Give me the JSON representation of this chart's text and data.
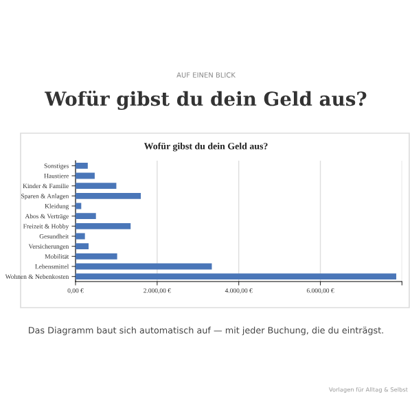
{
  "chart_data": {
    "type": "bar",
    "orientation": "horizontal",
    "title": "Wofür gibst du dein Geld aus?",
    "subtitle": "AUF EINEN BLICK",
    "annotations": [
      "Wofür gibst du dein Geld aus?",
      "Das Diagramm baut sich automatisch auf — mit jeder Buchung, die du einträgst.",
      "Vorlagen für Alltag & Selbst"
    ],
    "categories": [
      "Sonstiges",
      "Haustiere",
      "Kinder & Familie",
      "Sparen & Anlagen",
      "Kleidung",
      "Abos & Verträge",
      "Freizeit & Hobby",
      "Gesundheit",
      "Versicherungen",
      "Mobilität",
      "Lebensmittel",
      "Wohnen & Nebenkosten"
    ],
    "values": [
      300,
      470,
      1000,
      1600,
      140,
      500,
      1350,
      230,
      320,
      1020,
      3340,
      7860
    ],
    "color": "#4a76b8",
    "xlim": [
      0,
      8000
    ],
    "xticks": [
      {
        "value": 0,
        "label": "0,00 €"
      },
      {
        "value": 2000,
        "label": "2.000,00 €"
      },
      {
        "value": 4000,
        "label": "4.000,00 €"
      },
      {
        "value": 6000,
        "label": "6.000,00 €"
      },
      {
        "value": 8000,
        "label": null
      }
    ],
    "grid": "x",
    "legend": false
  }
}
